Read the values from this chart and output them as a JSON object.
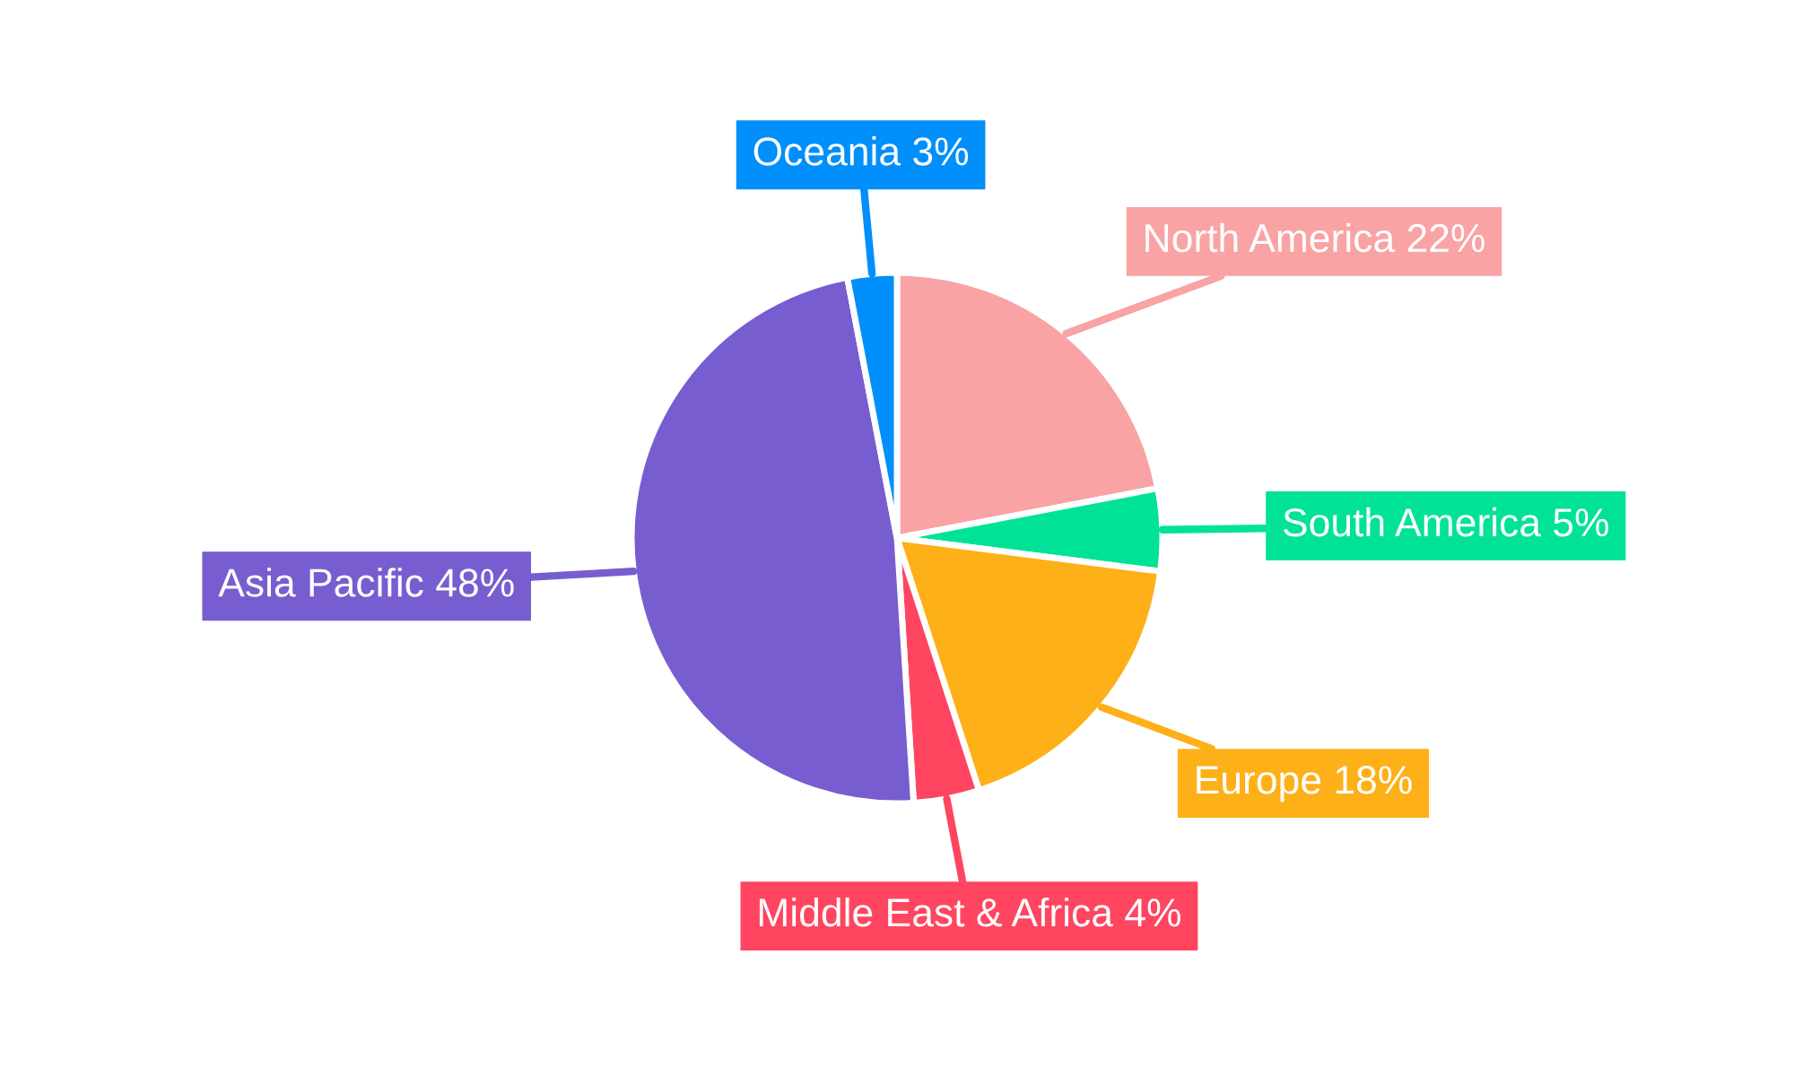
{
  "chart_data": {
    "type": "pie",
    "categories": [
      "North America",
      "South America",
      "Europe",
      "Middle East & Africa",
      "Asia Pacific",
      "Oceania"
    ],
    "values": [
      22,
      5,
      18,
      4,
      48,
      3
    ],
    "colors": [
      "#f9a3a4",
      "#00e396",
      "#feb019",
      "#ff4560",
      "#775dd0",
      "#008ffb"
    ],
    "value_labels": [
      "22%",
      "5%",
      "18%",
      "4%",
      "48%",
      "3%"
    ],
    "legend": false
  }
}
